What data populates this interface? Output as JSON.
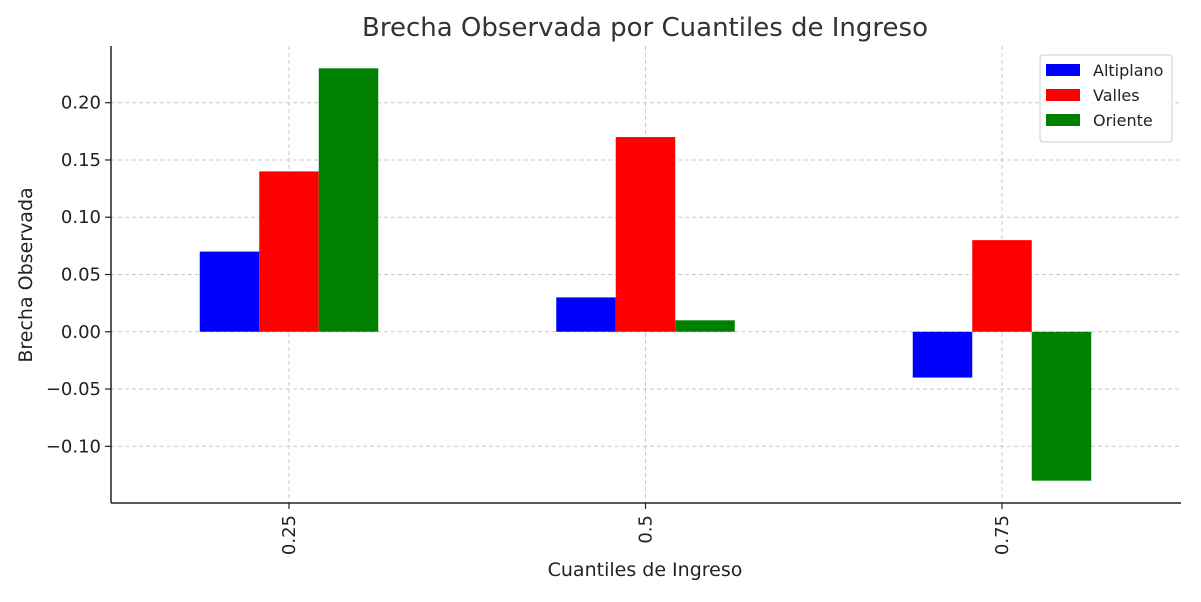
{
  "chart_data": {
    "type": "bar",
    "title": "Brecha Observada por Cuantiles de Ingreso",
    "xlabel": "Cuantiles de Ingreso",
    "ylabel": "Brecha Observada",
    "categories": [
      "0.25",
      "0.5",
      "0.75"
    ],
    "series": [
      {
        "name": "Altiplano",
        "color": "#0000ff",
        "values": [
          0.07,
          0.03,
          -0.04
        ]
      },
      {
        "name": "Valles",
        "color": "#ff0000",
        "values": [
          0.14,
          0.17,
          0.08
        ]
      },
      {
        "name": "Oriente",
        "color": "#008000",
        "values": [
          0.23,
          0.01,
          -0.13
        ]
      }
    ],
    "yticks": [
      -0.1,
      -0.05,
      0.0,
      0.05,
      0.1,
      0.15,
      0.2
    ],
    "ytick_labels": [
      "−0.10",
      "−0.05",
      "0.00",
      "0.05",
      "0.10",
      "0.15",
      "0.20"
    ],
    "ylim": [
      -0.1495,
      0.2495
    ],
    "grid": true,
    "legend_position": "top-right",
    "xtick_rotation": "vertical"
  }
}
